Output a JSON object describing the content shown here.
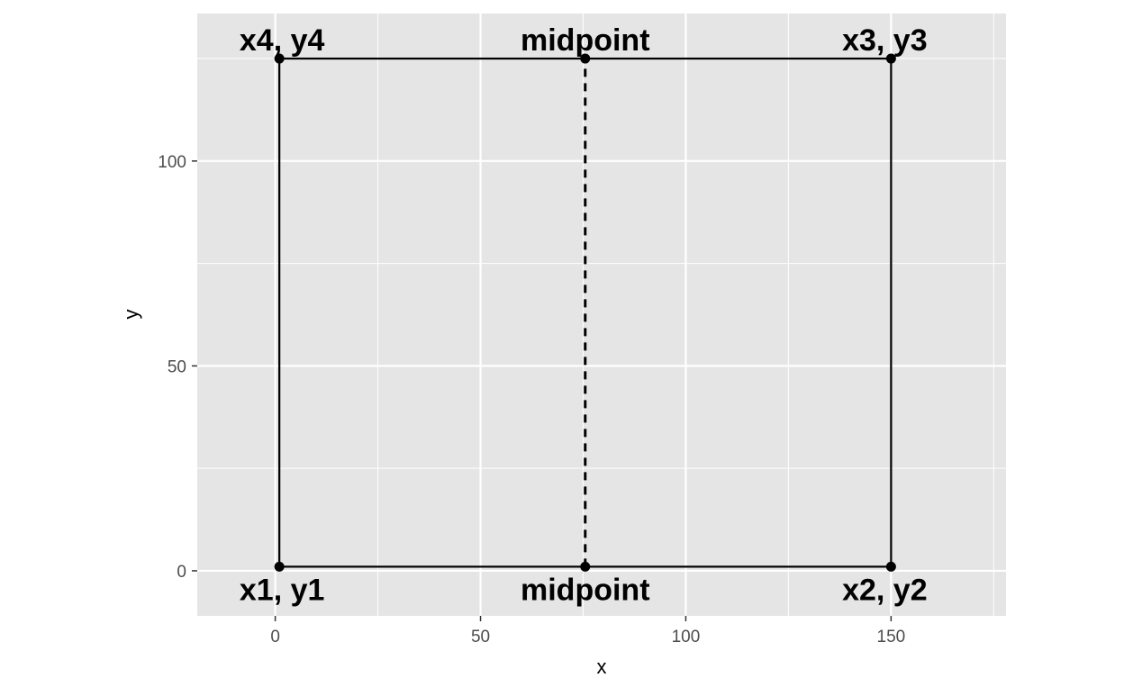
{
  "chart_data": {
    "type": "scatter",
    "xlabel": "x",
    "ylabel": "y",
    "xlim": [
      -19,
      178
    ],
    "ylim": [
      -11,
      136
    ],
    "x_ticks": [
      0,
      50,
      100,
      150
    ],
    "y_ticks": [
      0,
      50,
      100
    ],
    "x_minor_ticks": [
      25,
      75,
      125,
      175
    ],
    "y_minor_ticks": [
      25,
      75,
      125
    ],
    "grid": true,
    "panel_background": "#e5e5e5",
    "grid_color": "#ffffff",
    "line_color": "#000000",
    "points": [
      {
        "x": 1,
        "y": 1,
        "label": "x1, y1",
        "label_pos": "below-left"
      },
      {
        "x": 150,
        "y": 1,
        "label": "x2, y2",
        "label_pos": "below-right"
      },
      {
        "x": 150,
        "y": 125,
        "label": "x3, y3",
        "label_pos": "above-right"
      },
      {
        "x": 1,
        "y": 125,
        "label": "x4, y4",
        "label_pos": "above-left"
      },
      {
        "x": 75.5,
        "y": 1,
        "label": "midpoint",
        "label_pos": "below"
      },
      {
        "x": 75.5,
        "y": 125,
        "label": "midpoint",
        "label_pos": "above"
      }
    ],
    "rectangle": {
      "x1": 1,
      "y1": 1,
      "x2": 150,
      "y2": 125,
      "style": "solid"
    },
    "segments": [
      {
        "x1": 75.5,
        "y1": 1,
        "x2": 75.5,
        "y2": 125,
        "style": "dashed"
      }
    ]
  }
}
